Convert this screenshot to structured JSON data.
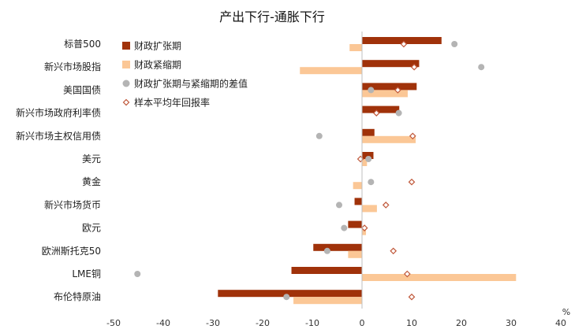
{
  "chart_data": {
    "type": "bar",
    "orientation": "horizontal",
    "title": "产出下行-通胀下行",
    "unit": "%",
    "xlim": [
      -50,
      40
    ],
    "xticks": [
      -50,
      -40,
      -30,
      -20,
      -10,
      0,
      10,
      20,
      30,
      40
    ],
    "categories": [
      "标普500",
      "新兴市场股指",
      "美国国债",
      "新兴市场政府利率债",
      "新兴市场主权信用债",
      "美元",
      "黄金",
      "新兴市场货币",
      "欧元",
      "欧洲斯托克50",
      "LME铜",
      "布伦特原油"
    ],
    "series": [
      {
        "name": "财政扩张期",
        "kind": "bar",
        "color": "#A0320A",
        "values": [
          16,
          11.5,
          11,
          7.5,
          2.5,
          2.3,
          0,
          -1.5,
          -2.8,
          -9.8,
          -14.2,
          -29
        ]
      },
      {
        "name": "财政紧缩期",
        "kind": "bar",
        "color": "#FBC796",
        "values": [
          -2.5,
          -12.5,
          9.2,
          0,
          10.8,
          1,
          -1.8,
          3,
          0.8,
          -2.8,
          31,
          -13.8
        ]
      },
      {
        "name": "财政扩张期与紧缩期的差值",
        "kind": "dot",
        "color": "#B4B4B4",
        "values": [
          18.6,
          24,
          1.8,
          7.4,
          -8.6,
          1.3,
          1.8,
          -4.6,
          -3.6,
          -7,
          -45.2,
          -15.2
        ]
      },
      {
        "name": "样本平均年回报率",
        "kind": "diamond",
        "color": "#C0583A",
        "values": [
          8.4,
          10.5,
          7.2,
          2.9,
          10.2,
          -0.3,
          10,
          4.8,
          0.5,
          6.3,
          9.1,
          10
        ]
      }
    ],
    "legend_position": "top-left"
  }
}
